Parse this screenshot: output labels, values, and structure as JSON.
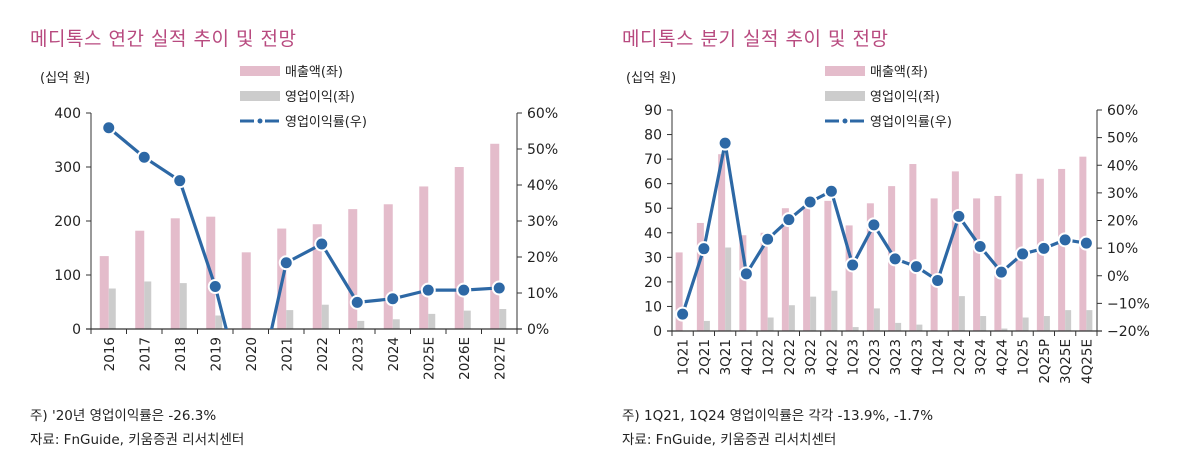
{
  "colors": {
    "title": "#b84a7f",
    "revenue_bar": "#e4bccb",
    "op_bar": "#cccccc",
    "margin_line": "#2d68a5",
    "axis": "#333333"
  },
  "chart_data": [
    {
      "id": "annual",
      "type": "bar",
      "title": "메디톡스 연간 실적 추이 및 전망",
      "unit_label": "(십억 원)",
      "xlabel": "",
      "ylabel": "",
      "categories": [
        "2016",
        "2017",
        "2018",
        "2019",
        "2020",
        "2021",
        "2022",
        "2023",
        "2024",
        "2025E",
        "2026E",
        "2027E"
      ],
      "series": [
        {
          "name": "매출액(좌)",
          "kind": "bar",
          "axis": "left",
          "values": [
            135,
            182,
            205,
            208,
            142,
            186,
            194,
            222,
            231,
            264,
            300,
            343
          ]
        },
        {
          "name": "영업이익(좌)",
          "kind": "bar",
          "axis": "left",
          "values": [
            75,
            88,
            85,
            25,
            -37,
            35,
            45,
            15,
            18,
            28,
            34,
            37
          ]
        },
        {
          "name": "영업이익률(우)",
          "kind": "line",
          "axis": "right",
          "values": [
            55.9,
            47.7,
            41.2,
            11.8,
            -26.3,
            18.4,
            23.6,
            7.4,
            8.4,
            10.8,
            10.8,
            11.4
          ]
        }
      ],
      "ylim": [
        0,
        400
      ],
      "yticks": [
        0,
        100,
        200,
        300,
        400
      ],
      "y2lim": [
        0,
        60
      ],
      "y2ticks": [
        0,
        10,
        20,
        30,
        40,
        50,
        60
      ],
      "y2_format": "percent",
      "legend": [
        "매출액(좌)",
        "영업이익(좌)",
        "영업이익률(우)"
      ],
      "legend_position": "top-center",
      "grid": false,
      "notes": [
        "주) '20년 영업이익률은 -26.3%",
        "자료: FnGuide, 키움증권 리서치센터"
      ]
    },
    {
      "id": "quarterly",
      "type": "bar",
      "title": "메디톡스 분기 실적 추이 및 전망",
      "unit_label": "(십억 원)",
      "xlabel": "",
      "ylabel": "",
      "categories": [
        "1Q21",
        "2Q21",
        "3Q21",
        "4Q21",
        "1Q22",
        "2Q22",
        "3Q22",
        "4Q22",
        "1Q23",
        "2Q23",
        "3Q23",
        "4Q23",
        "1Q24",
        "2Q24",
        "3Q24",
        "4Q24",
        "1Q25",
        "2Q25P",
        "3Q25E",
        "4Q25E"
      ],
      "series": [
        {
          "name": "매출액(좌)",
          "kind": "bar",
          "axis": "left",
          "values": [
            32,
            44,
            72,
            39,
            40,
            50,
            50,
            53,
            43,
            52,
            59,
            68,
            54,
            65,
            54,
            55,
            64,
            62,
            66,
            71
          ]
        },
        {
          "name": "영업이익(좌)",
          "kind": "bar",
          "axis": "left",
          "values": [
            -4.4,
            4.1,
            34,
            0.3,
            5.5,
            10.5,
            14,
            16.4,
            1.6,
            9.2,
            3.3,
            2.6,
            -0.9,
            14.2,
            6.1,
            1.0,
            5.5,
            6.1,
            8.5,
            8.5
          ]
        },
        {
          "name": "영업이익률(우)",
          "kind": "line",
          "axis": "right",
          "values": [
            -13.9,
            9.8,
            48.0,
            0.7,
            13.2,
            20.3,
            26.7,
            30.6,
            3.9,
            18.4,
            6.1,
            3.3,
            -1.7,
            21.5,
            10.6,
            1.3,
            7.9,
            9.9,
            13.0,
            11.8
          ]
        }
      ],
      "ylim": [
        0,
        90
      ],
      "yticks": [
        0,
        10,
        20,
        30,
        40,
        50,
        60,
        70,
        80,
        90
      ],
      "y2lim": [
        -20,
        60
      ],
      "y2ticks": [
        -20,
        -10,
        0,
        10,
        20,
        30,
        40,
        50,
        60
      ],
      "y2_format": "percent",
      "legend": [
        "매출액(좌)",
        "영업이익(좌)",
        "영업이익률(우)"
      ],
      "legend_position": "top-center",
      "grid": false,
      "notes": [
        "주) 1Q21, 1Q24 영업이익률은 각각 -13.9%, -1.7%",
        "자료: FnGuide, 키움증권 리서치센터"
      ]
    }
  ]
}
